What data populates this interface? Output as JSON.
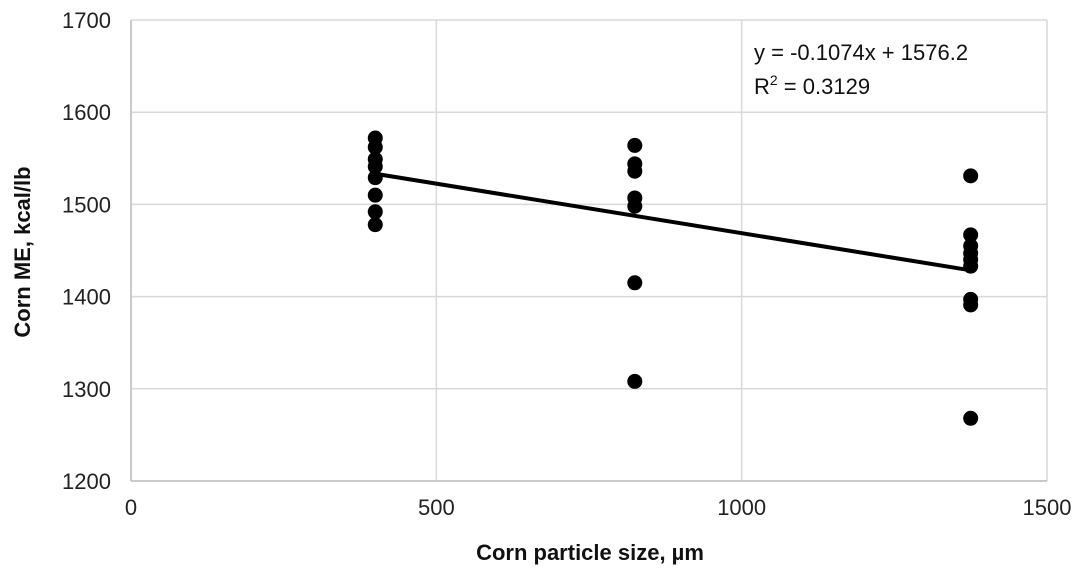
{
  "chart_data": {
    "type": "scatter",
    "xlabel": "Corn particle size, µm",
    "ylabel": "Corn ME, kcal/lb",
    "xlim": [
      0,
      1500
    ],
    "ylim": [
      1200,
      1700
    ],
    "x_ticks": [
      "0",
      "500",
      "1000",
      "1500"
    ],
    "y_ticks": [
      "1200",
      "1300",
      "1400",
      "1500",
      "1600",
      "1700"
    ],
    "grid": true,
    "legend": "none",
    "series": [
      {
        "points": [
          [
            400,
            1572
          ],
          [
            400,
            1562
          ],
          [
            400,
            1549
          ],
          [
            400,
            1541
          ],
          [
            400,
            1529
          ],
          [
            400,
            1510
          ],
          [
            400,
            1492
          ],
          [
            400,
            1478
          ],
          [
            825,
            1564
          ],
          [
            825,
            1544
          ],
          [
            825,
            1536
          ],
          [
            825,
            1507
          ],
          [
            825,
            1498
          ],
          [
            825,
            1415
          ],
          [
            825,
            1308
          ],
          [
            1375,
            1531
          ],
          [
            1375,
            1467
          ],
          [
            1375,
            1455
          ],
          [
            1375,
            1447
          ],
          [
            1375,
            1440
          ],
          [
            1375,
            1433
          ],
          [
            1375,
            1397
          ],
          [
            1375,
            1391
          ],
          [
            1375,
            1268
          ]
        ],
        "color": "#000000"
      }
    ],
    "trendline": {
      "slope": -0.1074,
      "intercept": 1576.2,
      "x_range": [
        400,
        1375
      ],
      "color": "#000000"
    },
    "annotation": {
      "equation": "y = -0.1074x + 1576.2",
      "r2_prefix": "R",
      "r2_sup": "2",
      "r2_value": " = 0.3129"
    },
    "colors": {
      "grid": "#d9d9d9",
      "axis": "#bfbfbf"
    }
  }
}
